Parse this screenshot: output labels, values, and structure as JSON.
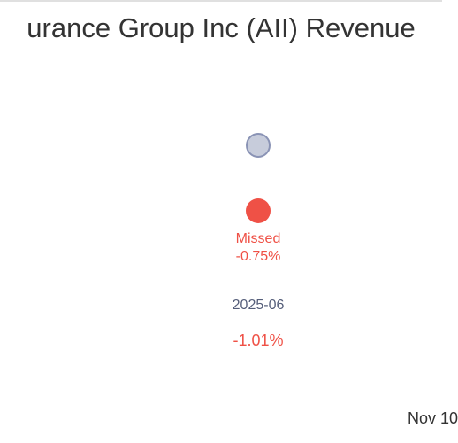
{
  "chart_data": {
    "type": "scatter",
    "title": "urance Group Inc (AII) Revenue",
    "x_categories": [
      "2025-06"
    ],
    "series": [
      {
        "name": "",
        "values": [
          null
        ],
        "color": "#c7ccdb",
        "stroke": "#8a93b5"
      },
      {
        "name": "",
        "values": [
          null
        ],
        "color": "#ef5146"
      }
    ],
    "annotations": [
      {
        "point": "actual",
        "status": "Missed",
        "value_label": "-0.75%"
      }
    ],
    "category_change_labels": [
      "-1.01%"
    ],
    "status_colors": {
      "missed": "#ef5146",
      "category": "#555e7a"
    },
    "grid": false,
    "footer_date": "Nov 10"
  }
}
